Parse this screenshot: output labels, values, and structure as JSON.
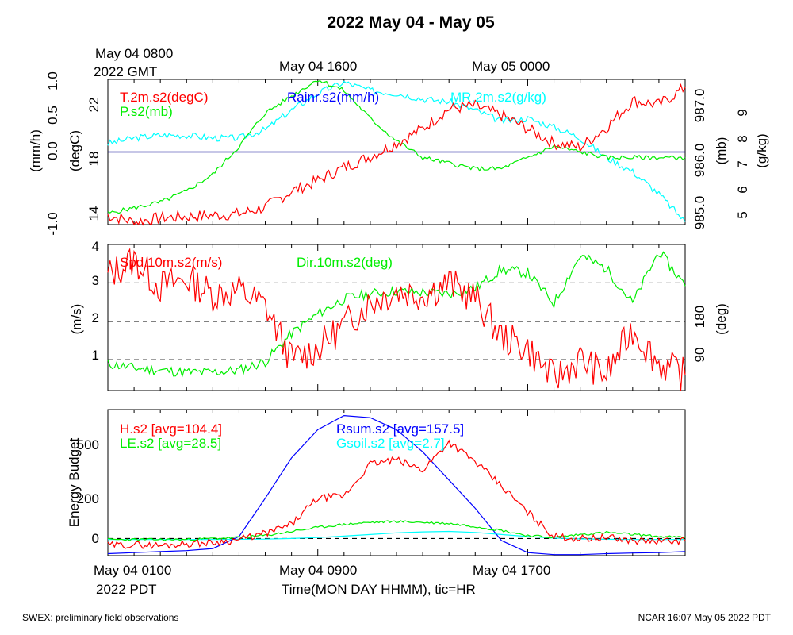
{
  "title": "2022 May 04 - May 05",
  "top_time_labels": {
    "first_line1": "May 04 0800",
    "first_line2": "2022 GMT",
    "mid": "May 04 1600",
    "right": "May 05 0000"
  },
  "bottom_time_labels": {
    "first_line1": "May 04 0100",
    "first_line2": "2022 PDT",
    "mid": "May 04 0900",
    "right": "May 04 1700"
  },
  "xlabel": "Time(MON DAY HHMM), tic=HR",
  "footer_left": "SWEX: preliminary field observations",
  "footer_right": "NCAR 16:07 May 05 2022 PDT",
  "colors": {
    "red": "#ff0000",
    "green": "#00ee00",
    "blue": "#0000ff",
    "cyan": "#00ffff",
    "black": "#000000"
  },
  "chart_data": [
    {
      "type": "line",
      "x_range_hours_pdt": [
        1,
        23
      ],
      "axes": {
        "rain_left": {
          "label": "(mm/h)",
          "ticks": [
            "-1.0",
            "0.0",
            "0.5",
            "1.0"
          ],
          "ylim": [
            -1.0,
            1.0
          ]
        },
        "temp_left": {
          "label": "(degC)",
          "ticks": [
            "14",
            "18",
            "22"
          ],
          "ylim": [
            13.5,
            24.4
          ]
        },
        "pressure_right": {
          "label": "(mb)",
          "ticks": [
            "985.0",
            "986.0",
            "987.0"
          ],
          "ylim": [
            984.8,
            987.4
          ]
        },
        "mixing_right": {
          "label": "(g/kg)",
          "ticks": [
            "5",
            "6",
            "7",
            "8",
            "9"
          ],
          "ylim": [
            4.9,
            10.1
          ]
        }
      },
      "series": [
        {
          "name": "T.2m.s2(degC)",
          "color": "#ff0000",
          "axis": "temp",
          "x": [
            1,
            2,
            3,
            4,
            5,
            6,
            7,
            8,
            9,
            10,
            11,
            12,
            13,
            14,
            15,
            16,
            17,
            18,
            19,
            20,
            21,
            22,
            23
          ],
          "y": [
            14.2,
            13.7,
            14.0,
            14.1,
            14.2,
            14.3,
            14.8,
            16.0,
            16.8,
            17.8,
            18.6,
            19.6,
            20.7,
            22.2,
            22.4,
            21.7,
            20.7,
            19.6,
            19.3,
            20.8,
            22.8,
            22.5,
            23.8
          ]
        },
        {
          "name": "P.s2(mb)",
          "color": "#00ee00",
          "axis": "pressure",
          "x": [
            1,
            2,
            3,
            4,
            5,
            6,
            7,
            8,
            9,
            10,
            11,
            12,
            13,
            14,
            15,
            16,
            17,
            18,
            19,
            20,
            21,
            22,
            23
          ],
          "y": [
            985.0,
            985.1,
            985.2,
            985.4,
            985.7,
            986.2,
            986.8,
            987.1,
            987.4,
            987.2,
            986.7,
            986.3,
            986.0,
            985.9,
            985.8,
            985.8,
            986.0,
            986.2,
            986.1,
            986.0,
            986.0,
            986.0,
            986.0
          ]
        },
        {
          "name": "MR.2m.s2(g/kg)",
          "color": "#00ffff",
          "axis": "mixing",
          "x": [
            1,
            2,
            3,
            4,
            5,
            6,
            7,
            8,
            9,
            10,
            11,
            12,
            13,
            14,
            15,
            16,
            17,
            18,
            19,
            20,
            21,
            22,
            23
          ],
          "y": [
            7.8,
            8.0,
            8.1,
            8.1,
            8.0,
            8.0,
            8.3,
            9.0,
            9.6,
            10.0,
            9.7,
            9.6,
            9.4,
            9.3,
            9.0,
            8.6,
            8.7,
            8.4,
            8.0,
            7.3,
            6.8,
            6.0,
            5.0
          ]
        },
        {
          "name": "Rainr.s2(mm/h)",
          "color": "#0000ff",
          "axis": "rain",
          "x": [
            1,
            23
          ],
          "y": [
            0.0,
            0.0
          ]
        }
      ]
    },
    {
      "type": "line",
      "x_range_hours_pdt": [
        1,
        23
      ],
      "axes": {
        "speed_left": {
          "label": "(m/s)",
          "ticks": [
            "1",
            "2",
            "3",
            "4"
          ],
          "ylim": [
            0.2,
            4.0
          ]
        },
        "dir_right": {
          "label": "(deg)",
          "ticks": [
            "90",
            "180"
          ],
          "ylim": [
            -62,
            276
          ]
        }
      },
      "reference_lines_mps": [
        1,
        2,
        3
      ],
      "series": [
        {
          "name": "Spd.10m.s2(m/s)",
          "color": "#ff0000",
          "axis": "speed",
          "x": [
            1,
            2,
            3,
            4,
            5,
            6,
            7,
            8,
            9,
            10,
            11,
            12,
            13,
            14,
            15,
            16,
            17,
            18,
            19,
            20,
            21,
            22,
            23
          ],
          "y": [
            3.2,
            3.6,
            2.9,
            3.1,
            2.7,
            2.8,
            2.4,
            1.0,
            1.3,
            1.9,
            2.5,
            2.8,
            2.7,
            3.0,
            2.6,
            1.6,
            1.3,
            0.5,
            1.0,
            0.6,
            1.8,
            0.9,
            0.6
          ]
        },
        {
          "name": "Dir.10m.s2(deg)",
          "color": "#00ee00",
          "axis": "dir",
          "x": [
            1,
            2,
            3,
            4,
            5,
            6,
            7,
            8,
            9,
            10,
            11,
            12,
            13,
            14,
            15,
            16,
            17,
            18,
            19,
            20,
            21,
            22,
            23
          ],
          "y": [
            0,
            -10,
            -15,
            -20,
            -20,
            -15,
            5,
            70,
            115,
            150,
            162,
            168,
            165,
            162,
            175,
            218,
            210,
            140,
            250,
            220,
            140,
            260,
            180
          ]
        }
      ]
    },
    {
      "type": "line",
      "x_range_hours_pdt": [
        1,
        23
      ],
      "ylabel": "Energy Budget",
      "yticks": [
        "0",
        "200",
        "500"
      ],
      "ylim": [
        -85,
        640
      ],
      "series": [
        {
          "name": "H.s2 [avg=104.4]",
          "color": "#ff0000",
          "x": [
            1,
            2,
            3,
            4,
            5,
            6,
            7,
            8,
            9,
            10,
            11,
            12,
            13,
            14,
            15,
            16,
            17,
            18,
            19,
            20,
            21,
            22,
            23
          ],
          "y": [
            -35,
            -30,
            -35,
            -25,
            -20,
            -5,
            25,
            70,
            200,
            210,
            370,
            390,
            340,
            480,
            380,
            260,
            130,
            10,
            0,
            5,
            -10,
            -15,
            -10
          ]
        },
        {
          "name": "LE.s2 [avg=28.5]",
          "color": "#00ee00",
          "x": [
            1,
            2,
            3,
            4,
            5,
            6,
            7,
            8,
            9,
            10,
            11,
            12,
            13,
            14,
            15,
            16,
            17,
            18,
            19,
            20,
            21,
            22,
            23
          ],
          "y": [
            -5,
            -5,
            -5,
            -5,
            0,
            5,
            15,
            35,
            55,
            70,
            80,
            85,
            80,
            75,
            60,
            40,
            15,
            5,
            20,
            30,
            20,
            10,
            5
          ]
        },
        {
          "name": "Rsum.s2 [avg=157.5]",
          "color": "#0000ff",
          "x": [
            1,
            2,
            3,
            4,
            5,
            6,
            7,
            8,
            9,
            10,
            11,
            12,
            13,
            14,
            15,
            16,
            17,
            18,
            19,
            20,
            21,
            22,
            23
          ],
          "y": [
            -75,
            -70,
            -65,
            -60,
            -50,
            10,
            200,
            400,
            540,
            610,
            600,
            540,
            430,
            290,
            150,
            -10,
            -70,
            -80,
            -80,
            -75,
            -72,
            -70,
            -65
          ]
        },
        {
          "name": "Gsoil.s2 [avg=2.7]",
          "color": "#00ffff",
          "x": [
            1,
            2,
            3,
            4,
            5,
            6,
            7,
            8,
            9,
            10,
            11,
            12,
            13,
            14,
            15,
            16,
            17,
            18,
            19,
            20,
            21,
            22,
            23
          ],
          "y": [
            -5,
            -5,
            -5,
            -5,
            -5,
            -4,
            -3,
            0,
            5,
            12,
            20,
            28,
            33,
            35,
            30,
            20,
            10,
            2,
            -2,
            -4,
            -5,
            -5,
            -5
          ]
        }
      ]
    }
  ]
}
